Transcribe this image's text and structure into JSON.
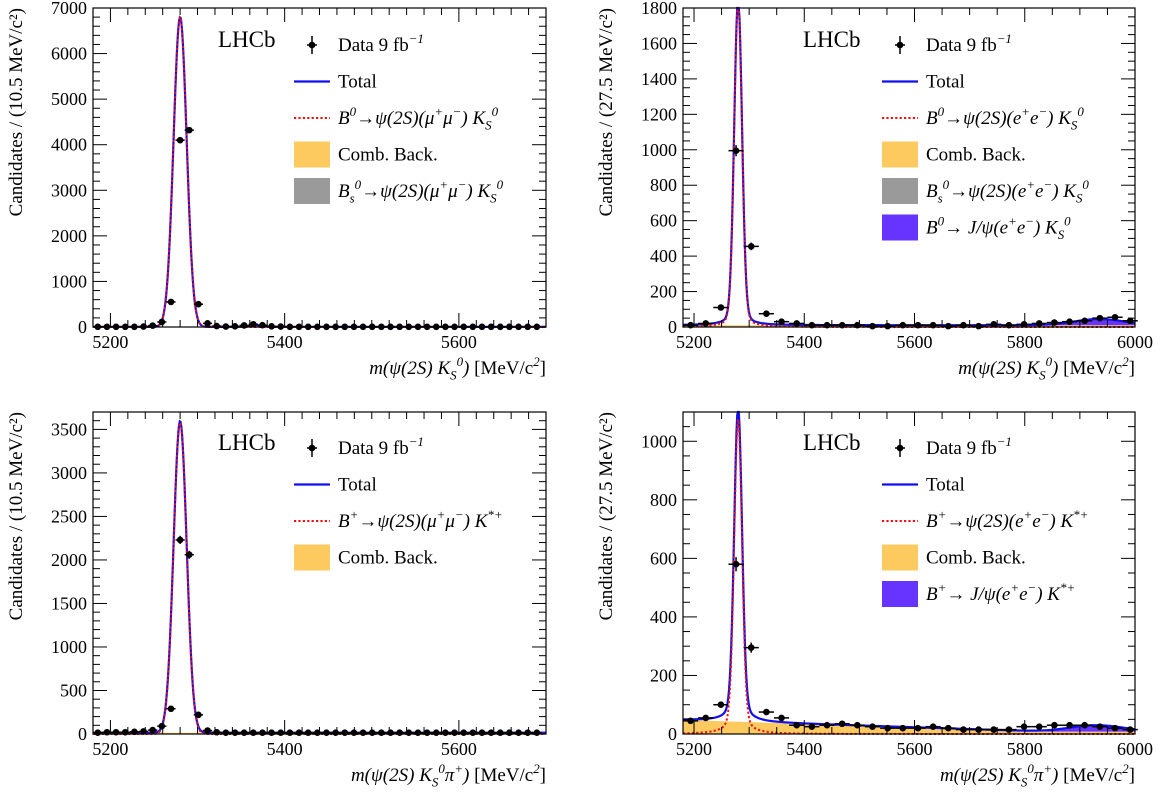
{
  "chart_data": [
    {
      "type": "line",
      "subtype": "mass-fit",
      "xlim": [
        5180,
        5700
      ],
      "ylim": [
        0,
        7000
      ],
      "xticks": [
        5200,
        5400,
        5600
      ],
      "yticks": [
        0,
        1000,
        2000,
        3000,
        4000,
        5000,
        6000,
        7000
      ],
      "ytick_labels": [
        "0",
        "1000",
        "2000",
        "3000",
        "4000",
        "5000",
        "6000",
        "7000"
      ],
      "xticks_minor": 20,
      "yticks_minor": 200,
      "xlabel_parts": [
        [
          "m(ψ(2S) K",
          "i"
        ],
        [
          "S",
          "sub"
        ],
        [
          "0",
          "sup"
        ],
        [
          ")",
          "i"
        ],
        [
          " [MeV/c",
          "n"
        ],
        [
          "2",
          "sup"
        ],
        [
          "]",
          "n"
        ]
      ],
      "ylabel": "Candidates / (10.5 MeV/c²)",
      "experiment": "LHCb",
      "legend": [
        {
          "kind": "data",
          "parts": [
            [
              "Data 9 fb",
              "n"
            ],
            [
              "−1",
              "sup"
            ]
          ]
        },
        {
          "kind": "line",
          "color": "#1010ee",
          "parts": [
            [
              "Total",
              "n"
            ]
          ]
        },
        {
          "kind": "dotted",
          "color": "#ee1010",
          "parts": [
            [
              "B",
              "i"
            ],
            [
              "0",
              "sup"
            ],
            [
              "→ψ(2S)(μ",
              "i"
            ],
            [
              "+",
              "sup"
            ],
            [
              "μ",
              "i"
            ],
            [
              "−",
              "sup"
            ],
            [
              ") K",
              "i"
            ],
            [
              "S",
              "sub"
            ],
            [
              "0",
              "sup"
            ]
          ]
        },
        {
          "kind": "fill",
          "color": "#fdca60",
          "parts": [
            [
              "Comb. Back.",
              "n"
            ]
          ]
        },
        {
          "kind": "fill",
          "color": "#9a9a9a",
          "parts": [
            [
              "B",
              "i"
            ],
            [
              "s",
              "sub"
            ],
            [
              "0",
              "sup"
            ],
            [
              "→ψ(2S)(μ",
              "i"
            ],
            [
              "+",
              "sup"
            ],
            [
              "μ",
              "i"
            ],
            [
              "−",
              "sup"
            ],
            [
              ") K",
              "i"
            ],
            [
              "S",
              "sub"
            ],
            [
              "0",
              "sup"
            ]
          ]
        }
      ],
      "peak": {
        "mu": 5280,
        "amp": 6800,
        "sigma": 7.5,
        "tail": 0
      },
      "background": {
        "level": 3,
        "slope": 0
      },
      "bs_peak": {
        "mu": 5367,
        "amp": 35,
        "sigma": 7
      },
      "data_points": {
        "x": [
          5185.5,
          5196,
          5206.5,
          5217,
          5227.5,
          5238,
          5248.5,
          5259,
          5269.5,
          5280,
          5290.5,
          5301,
          5311.5,
          5322,
          5332.5,
          5343,
          5353.5,
          5364,
          5374.5,
          5385,
          5395.5,
          5406,
          5416.5,
          5427,
          5437.5,
          5448,
          5458.5,
          5469,
          5479.5,
          5490,
          5500.5,
          5511,
          5521.5,
          5532,
          5542.5,
          5553,
          5563.5,
          5574,
          5584.5,
          5595,
          5605.5,
          5616,
          5626.5,
          5637,
          5647.5,
          5658,
          5668.5,
          5679,
          5689.5
        ],
        "y": [
          5,
          5,
          5,
          5,
          5,
          10,
          30,
          110,
          550,
          4100,
          4320,
          500,
          80,
          20,
          10,
          15,
          35,
          60,
          40,
          15,
          10,
          5,
          5,
          5,
          5,
          5,
          5,
          5,
          5,
          5,
          5,
          5,
          5,
          5,
          5,
          5,
          5,
          5,
          5,
          5,
          5,
          5,
          5,
          5,
          5,
          5,
          5,
          5,
          5
        ]
      }
    },
    {
      "type": "line",
      "subtype": "mass-fit",
      "xlim": [
        5180,
        6000
      ],
      "ylim": [
        0,
        1800
      ],
      "xticks": [
        5200,
        5400,
        5600,
        5800,
        6000
      ],
      "yticks": [
        0,
        200,
        400,
        600,
        800,
        1000,
        1200,
        1400,
        1600,
        1800
      ],
      "ytick_labels": [
        "0",
        "200",
        "400",
        "600",
        "800",
        "1000",
        "1200",
        "1400",
        "1600",
        "1800"
      ],
      "xticks_minor": 50,
      "yticks_minor": 50,
      "xlabel_parts": [
        [
          "m(ψ(2S) K",
          "i"
        ],
        [
          "S",
          "sub"
        ],
        [
          "0",
          "sup"
        ],
        [
          ")",
          "i"
        ],
        [
          " [MeV/c",
          "n"
        ],
        [
          "2",
          "sup"
        ],
        [
          "]",
          "n"
        ]
      ],
      "ylabel": "Candidates / (27.5 MeV/c²)",
      "experiment": "LHCb",
      "legend": [
        {
          "kind": "data",
          "parts": [
            [
              "Data 9 fb",
              "n"
            ],
            [
              "−1",
              "sup"
            ]
          ]
        },
        {
          "kind": "line",
          "color": "#1010ee",
          "parts": [
            [
              "Total",
              "n"
            ]
          ]
        },
        {
          "kind": "dotted",
          "color": "#ee1010",
          "parts": [
            [
              "B",
              "i"
            ],
            [
              "0",
              "sup"
            ],
            [
              "→ψ(2S)(e",
              "i"
            ],
            [
              "+",
              "sup"
            ],
            [
              "e",
              "i"
            ],
            [
              "−",
              "sup"
            ],
            [
              ") K",
              "i"
            ],
            [
              "S",
              "sub"
            ],
            [
              "0",
              "sup"
            ]
          ]
        },
        {
          "kind": "fill",
          "color": "#fdca60",
          "parts": [
            [
              "Comb. Back.",
              "n"
            ]
          ]
        },
        {
          "kind": "fill",
          "color": "#9a9a9a",
          "parts": [
            [
              "B",
              "i"
            ],
            [
              "s",
              "sub"
            ],
            [
              "0",
              "sup"
            ],
            [
              "→ψ(2S)(e",
              "i"
            ],
            [
              "+",
              "sup"
            ],
            [
              "e",
              "i"
            ],
            [
              "−",
              "sup"
            ],
            [
              ") K",
              "i"
            ],
            [
              "S",
              "sub"
            ],
            [
              "0",
              "sup"
            ]
          ]
        },
        {
          "kind": "fill",
          "color": "#6633ff",
          "parts": [
            [
              "B",
              "i"
            ],
            [
              "0",
              "sup"
            ],
            [
              "→ J/ψ(e",
              "i"
            ],
            [
              "+",
              "sup"
            ],
            [
              "e",
              "i"
            ],
            [
              "−",
              "sup"
            ],
            [
              ") K",
              "i"
            ],
            [
              "S",
              "sub"
            ],
            [
              "0",
              "sup"
            ]
          ]
        }
      ],
      "peak": {
        "mu": 5280,
        "amp": 1720,
        "sigma": 7,
        "tail": 0.018
      },
      "background": {
        "level": 10,
        "slope": 0
      },
      "jpsi_bump": {
        "mu": 5935,
        "amp": 35,
        "sigma": 45
      },
      "data_points": {
        "x": [
          5193.75,
          5221.25,
          5248.75,
          5276.25,
          5303.75,
          5331.25,
          5358.75,
          5386.25,
          5413.75,
          5441.25,
          5468.75,
          5496.25,
          5523.75,
          5551.25,
          5578.75,
          5606.25,
          5633.75,
          5661.25,
          5688.75,
          5716.25,
          5743.75,
          5771.25,
          5798.75,
          5826.25,
          5853.75,
          5881.25,
          5908.75,
          5936.25,
          5963.75,
          5991.25
        ],
        "y": [
          10,
          20,
          110,
          995,
          455,
          75,
          30,
          20,
          10,
          10,
          10,
          10,
          5,
          5,
          10,
          10,
          10,
          5,
          10,
          5,
          15,
          10,
          15,
          20,
          25,
          30,
          35,
          50,
          55,
          35
        ]
      }
    },
    {
      "type": "line",
      "subtype": "mass-fit",
      "xlim": [
        5180,
        5700
      ],
      "ylim": [
        0,
        3700
      ],
      "xticks": [
        5200,
        5400,
        5600
      ],
      "yticks": [
        0,
        500,
        1000,
        1500,
        2000,
        2500,
        3000,
        3500
      ],
      "ytick_labels": [
        "0",
        "500",
        "1000",
        "1500",
        "2000",
        "2500",
        "3000",
        "3500"
      ],
      "xticks_minor": 20,
      "yticks_minor": 100,
      "xlabel_parts": [
        [
          "m(ψ(2S) K",
          "i"
        ],
        [
          "S",
          "sub"
        ],
        [
          "0",
          "sup"
        ],
        [
          "π",
          "i"
        ],
        [
          "+",
          "sup"
        ],
        [
          ")",
          "i"
        ],
        [
          " [MeV/c",
          "n"
        ],
        [
          "2",
          "sup"
        ],
        [
          "]",
          "n"
        ]
      ],
      "ylabel": "Candidates / (10.5 MeV/c²)",
      "experiment": "LHCb",
      "legend": [
        {
          "kind": "data",
          "parts": [
            [
              "Data 9 fb",
              "n"
            ],
            [
              "−1",
              "sup"
            ]
          ]
        },
        {
          "kind": "line",
          "color": "#1010ee",
          "parts": [
            [
              "Total",
              "n"
            ]
          ]
        },
        {
          "kind": "dotted",
          "color": "#ee1010",
          "parts": [
            [
              "B",
              "i"
            ],
            [
              "+",
              "sup"
            ],
            [
              "→ψ(2S)(μ",
              "i"
            ],
            [
              "+",
              "sup"
            ],
            [
              "μ",
              "i"
            ],
            [
              "−",
              "sup"
            ],
            [
              ") K",
              "i"
            ],
            [
              "*+",
              "sup"
            ]
          ]
        },
        {
          "kind": "fill",
          "color": "#fdca60",
          "parts": [
            [
              "Comb. Back.",
              "n"
            ]
          ]
        }
      ],
      "peak": {
        "mu": 5280,
        "amp": 3580,
        "sigma": 7.5,
        "tail": 0
      },
      "background": {
        "level": 15,
        "slope": 0
      },
      "data_points": {
        "x": [
          5185.5,
          5196,
          5206.5,
          5217,
          5227.5,
          5238,
          5248.5,
          5259,
          5269.5,
          5280,
          5290.5,
          5301,
          5311.5,
          5322,
          5332.5,
          5343,
          5353.5,
          5364,
          5374.5,
          5385,
          5395.5,
          5406,
          5416.5,
          5427,
          5437.5,
          5448,
          5458.5,
          5469,
          5479.5,
          5490,
          5500.5,
          5511,
          5521.5,
          5532,
          5542.5,
          5553,
          5563.5,
          5574,
          5584.5,
          5595,
          5605.5,
          5616,
          5626.5,
          5637,
          5647.5,
          5658,
          5668.5,
          5679,
          5689.5
        ],
        "y": [
          15,
          20,
          20,
          20,
          25,
          30,
          45,
          90,
          290,
          2230,
          2060,
          220,
          40,
          20,
          15,
          15,
          15,
          15,
          15,
          15,
          15,
          15,
          15,
          15,
          15,
          15,
          15,
          15,
          15,
          15,
          15,
          15,
          15,
          15,
          15,
          15,
          15,
          15,
          15,
          15,
          15,
          15,
          15,
          15,
          15,
          15,
          15,
          15,
          15
        ]
      }
    },
    {
      "type": "line",
      "subtype": "mass-fit",
      "xlim": [
        5180,
        6000
      ],
      "ylim": [
        0,
        1100
      ],
      "xticks": [
        5200,
        5400,
        5600,
        5800,
        6000
      ],
      "yticks": [
        0,
        200,
        400,
        600,
        800,
        1000
      ],
      "ytick_labels": [
        "0",
        "200",
        "400",
        "600",
        "800",
        "1000"
      ],
      "xticks_minor": 50,
      "yticks_minor": 50,
      "xlabel_parts": [
        [
          "m(ψ(2S) K",
          "i"
        ],
        [
          "S",
          "sub"
        ],
        [
          "0",
          "sup"
        ],
        [
          "π",
          "i"
        ],
        [
          "+",
          "sup"
        ],
        [
          ")",
          "i"
        ],
        [
          " [MeV/c",
          "n"
        ],
        [
          "2",
          "sup"
        ],
        [
          "]",
          "n"
        ]
      ],
      "ylabel": "Candidates / (27.5 MeV/c²)",
      "experiment": "LHCb",
      "legend": [
        {
          "kind": "data",
          "parts": [
            [
              "Data 9 fb",
              "n"
            ],
            [
              "−1",
              "sup"
            ]
          ]
        },
        {
          "kind": "line",
          "color": "#1010ee",
          "parts": [
            [
              "Total",
              "n"
            ]
          ]
        },
        {
          "kind": "dotted",
          "color": "#ee1010",
          "parts": [
            [
              "B",
              "i"
            ],
            [
              "+",
              "sup"
            ],
            [
              "→ψ(2S)(e",
              "i"
            ],
            [
              "+",
              "sup"
            ],
            [
              "e",
              "i"
            ],
            [
              "−",
              "sup"
            ],
            [
              ") K",
              "i"
            ],
            [
              "*+",
              "sup"
            ]
          ]
        },
        {
          "kind": "fill",
          "color": "#fdca60",
          "parts": [
            [
              "Comb. Back.",
              "n"
            ]
          ]
        },
        {
          "kind": "fill",
          "color": "#6633ff",
          "parts": [
            [
              "B",
              "i"
            ],
            [
              "+",
              "sup"
            ],
            [
              "→ J/ψ(e",
              "i"
            ],
            [
              "+",
              "sup"
            ],
            [
              "e",
              "i"
            ],
            [
              "−",
              "sup"
            ],
            [
              ") K",
              "i"
            ],
            [
              "*+",
              "sup"
            ]
          ]
        }
      ],
      "peak": {
        "mu": 5280,
        "amp": 960,
        "sigma": 7,
        "tail": 0.03
      },
      "background": {
        "level": 48,
        "slope": -0.06,
        "floor": 8
      },
      "jpsi_bump": {
        "mu": 5930,
        "amp": 22,
        "sigma": 50
      },
      "data_points": {
        "x": [
          5193.75,
          5221.25,
          5248.75,
          5276.25,
          5303.75,
          5331.25,
          5358.75,
          5386.25,
          5413.75,
          5441.25,
          5468.75,
          5496.25,
          5523.75,
          5551.25,
          5578.75,
          5606.25,
          5633.75,
          5661.25,
          5688.75,
          5716.25,
          5743.75,
          5771.25,
          5798.75,
          5826.25,
          5853.75,
          5881.25,
          5908.75,
          5936.25,
          5963.75,
          5991.25
        ],
        "y": [
          45,
          55,
          100,
          580,
          295,
          75,
          55,
          30,
          25,
          30,
          35,
          30,
          25,
          20,
          20,
          20,
          25,
          20,
          15,
          15,
          15,
          15,
          25,
          25,
          30,
          30,
          30,
          25,
          20,
          15
        ]
      }
    }
  ]
}
